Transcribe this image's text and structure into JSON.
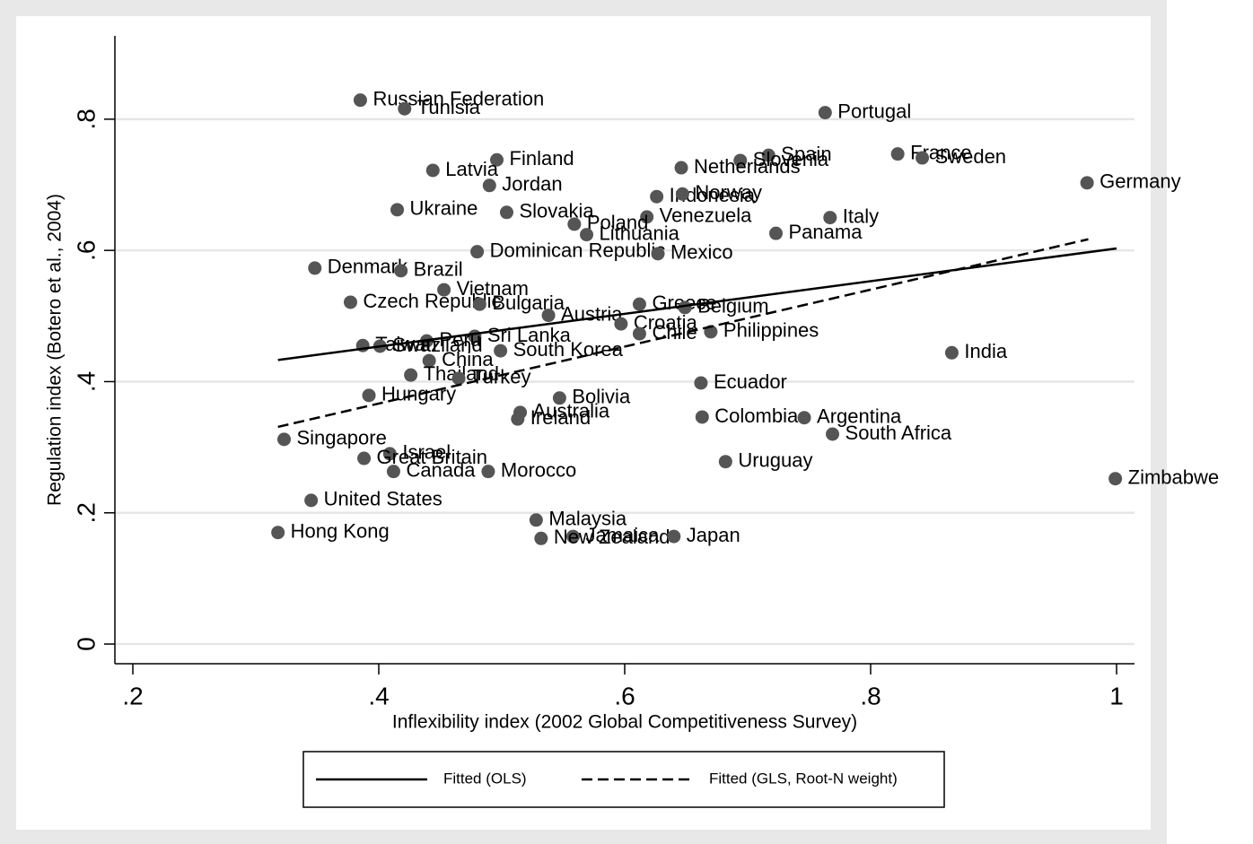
{
  "chart_data": {
    "type": "scatter",
    "xlabel": "Inflexibility index (2002 Global Competitiveness Survey)",
    "ylabel": "Regulation index (Botero et al., 2004)",
    "xlim": [
      0.1854,
      1.0146
    ],
    "ylim": [
      -0.03,
      0.927
    ],
    "xticks": [
      {
        "value": 0.2,
        "label": ".2"
      },
      {
        "value": 0.4,
        "label": ".4"
      },
      {
        "value": 0.6,
        "label": ".6"
      },
      {
        "value": 0.8,
        "label": ".8"
      },
      1
    ],
    "yticks": [
      0,
      {
        "value": 0.2,
        "label": ".2"
      },
      {
        "value": 0.4,
        "label": ".4"
      },
      {
        "value": 0.6,
        "label": ".6"
      },
      {
        "value": 0.8,
        "label": ".8"
      }
    ],
    "grid": true,
    "points": {
      "color": "#555555",
      "labels": [
        "Russian Federation",
        "Tunisia",
        "Portugal",
        "Spain",
        "Slovenia",
        "France",
        "Sweden",
        "Finland",
        "Latvia",
        "Netherlands",
        "Germany",
        "Jordan",
        "Indonesia",
        "Norway",
        "Ukraine",
        "Slovakia",
        "Venezuela",
        "Italy",
        "Poland",
        "Lithuania",
        "Panama",
        "Dominican Republic",
        "Mexico",
        "Denmark",
        "Brazil",
        "Vietnam",
        "Czech Republic",
        "Bulgaria",
        "Greece",
        "Belgium",
        "Austria",
        "Croatia",
        "Chile",
        "Philippines",
        "Sri Lanka",
        "Peru",
        "Taiwan",
        "Swaziland",
        "South Korea",
        "India",
        "China",
        "Thailand",
        "Turkey",
        "Ecuador",
        "Hungary",
        "Bolivia",
        "Australia",
        "Ireland",
        "Colombia",
        "Argentina",
        "South Africa",
        "Singapore",
        "Israel",
        "Great Britain",
        "Uruguay",
        "Canada",
        "Morocco",
        "Zimbabwe",
        "United States",
        "Malaysia",
        "Hong Kong",
        "Jamaica",
        "New Zealand",
        "Japan"
      ],
      "x": [
        0.385,
        0.421,
        0.763,
        0.717,
        0.694,
        0.822,
        0.842,
        0.496,
        0.444,
        0.646,
        0.976,
        0.49,
        0.626,
        0.647,
        0.415,
        0.504,
        0.618,
        0.767,
        0.559,
        0.569,
        0.723,
        0.48,
        0.627,
        0.348,
        0.418,
        0.453,
        0.377,
        0.482,
        0.612,
        0.649,
        0.538,
        0.597,
        0.612,
        0.67,
        0.478,
        0.439,
        0.387,
        0.401,
        0.499,
        0.866,
        0.441,
        0.426,
        0.465,
        0.662,
        0.392,
        0.547,
        0.515,
        0.513,
        0.663,
        0.746,
        0.769,
        0.323,
        0.409,
        0.388,
        0.682,
        0.412,
        0.489,
        0.999,
        0.345,
        0.528,
        0.318,
        0.558,
        0.532,
        0.64
      ],
      "y": [
        0.829,
        0.816,
        0.81,
        0.745,
        0.737,
        0.747,
        0.741,
        0.738,
        0.722,
        0.726,
        0.703,
        0.699,
        0.682,
        0.686,
        0.662,
        0.658,
        0.651,
        0.65,
        0.64,
        0.624,
        0.626,
        0.598,
        0.595,
        0.573,
        0.569,
        0.54,
        0.521,
        0.518,
        0.518,
        0.513,
        0.501,
        0.488,
        0.473,
        0.476,
        0.469,
        0.462,
        0.455,
        0.454,
        0.447,
        0.444,
        0.432,
        0.41,
        0.405,
        0.398,
        0.379,
        0.375,
        0.353,
        0.343,
        0.346,
        0.345,
        0.32,
        0.312,
        0.29,
        0.283,
        0.278,
        0.263,
        0.263,
        0.252,
        0.219,
        0.189,
        0.17,
        0.164,
        0.161,
        0.164
      ]
    },
    "fits": [
      {
        "name": "Fitted (OLS)",
        "dashed": false,
        "color": "#000000",
        "x": [
          0.318,
          1.0
        ],
        "y": [
          0.433,
          0.603
        ]
      },
      {
        "name": "Fitted (GLS, Root-N weight)",
        "dashed": true,
        "color": "#000000",
        "x": [
          0.318,
          0.977
        ],
        "y": [
          0.331,
          0.617
        ]
      }
    ]
  }
}
